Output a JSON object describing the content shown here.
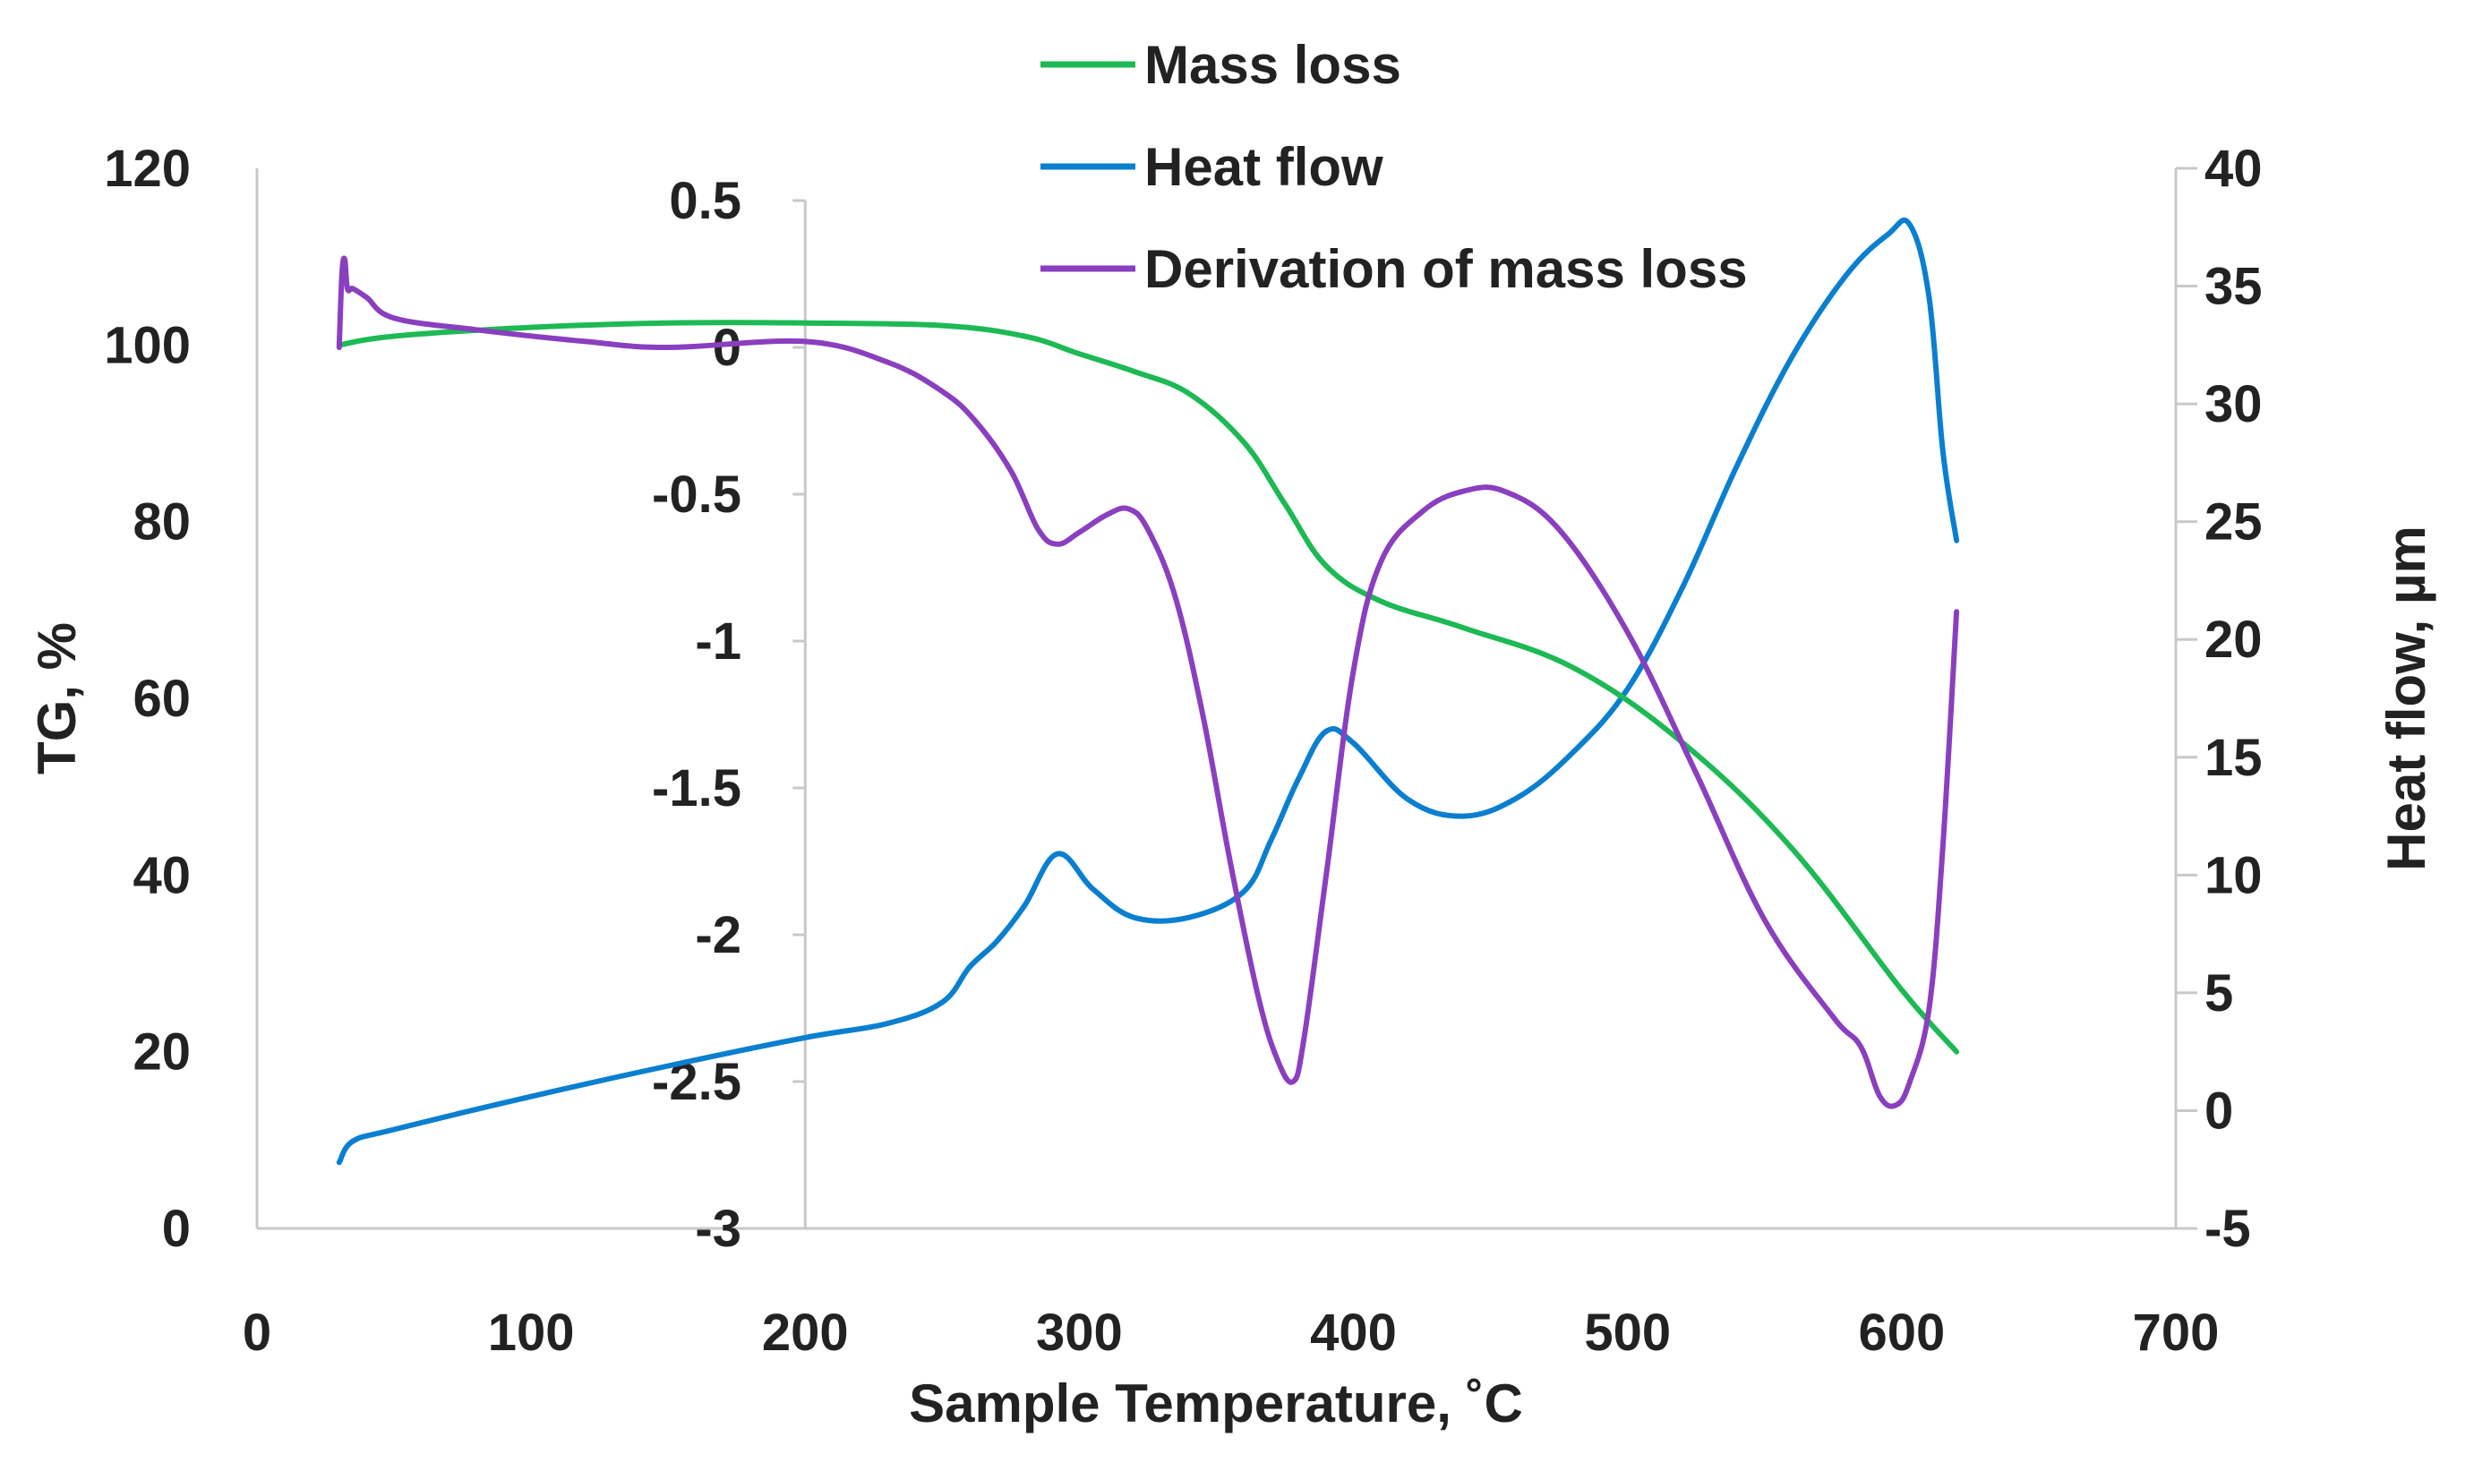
{
  "chart_data": {
    "type": "line",
    "title": "",
    "xlabel": "Sample Temperature, ˚C",
    "ylabel_left": "TG, %",
    "ylabel_right": "Heat flow, µm",
    "grid": false,
    "legend_position": "top-center",
    "x_axis": {
      "range": [
        0,
        700
      ],
      "ticks": [
        "0",
        "100",
        "200",
        "300",
        "400",
        "500",
        "600",
        "700"
      ]
    },
    "y_left": {
      "range": [
        0,
        120
      ],
      "ticks": [
        "0",
        "20",
        "40",
        "60",
        "80",
        "100",
        "120"
      ]
    },
    "y_mid": {
      "range": [
        -3,
        0.5
      ],
      "position_x_value": 200,
      "ticks": [
        "-3",
        "-2.5",
        "-2",
        "-1.5",
        "-1",
        "-0.5",
        "0",
        "0.5"
      ]
    },
    "y_right": {
      "range": [
        -5,
        40
      ],
      "ticks": [
        "-5",
        "0",
        "5",
        "10",
        "15",
        "20",
        "25",
        "30",
        "35",
        "40"
      ]
    },
    "series": [
      {
        "name": "Mass loss",
        "axis": "y_left",
        "color": "#1db954",
        "x": [
          30,
          50,
          100,
          150,
          200,
          250,
          280,
          300,
          320,
          340,
          360,
          375,
          390,
          410,
          440,
          480,
          520,
          560,
          600,
          620
        ],
        "y": [
          100,
          101,
          102,
          102.5,
          102.5,
          102.2,
          101,
          99,
          97,
          94.5,
          89,
          82,
          75,
          71,
          68,
          63.5,
          55,
          43,
          27,
          20
        ]
      },
      {
        "name": "Heat flow",
        "axis": "y_right",
        "color": "#0a7fd0",
        "x": [
          30,
          35,
          50,
          100,
          150,
          200,
          230,
          250,
          260,
          270,
          280,
          292,
          305,
          320,
          340,
          360,
          370,
          380,
          390,
          400,
          420,
          440,
          460,
          480,
          500,
          520,
          540,
          560,
          580,
          595,
          603,
          610,
          615,
          620
        ],
        "y": [
          -2.2,
          -1.3,
          -0.8,
          0.6,
          1.9,
          3.1,
          3.7,
          4.6,
          6.1,
          7.2,
          8.7,
          10.9,
          9.4,
          8.2,
          8.2,
          9.3,
          11.5,
          14.1,
          16.1,
          15.6,
          13.2,
          12.5,
          13.3,
          15.2,
          17.9,
          22.2,
          27.4,
          32.0,
          35.5,
          37.2,
          37.6,
          34.5,
          28.0,
          24.2
        ]
      },
      {
        "name": "Derivation of mass loss",
        "axis": "y_mid",
        "color": "#8a3fbf",
        "x": [
          30,
          31,
          32,
          33,
          35,
          40,
          50,
          80,
          120,
          150,
          200,
          230,
          250,
          262,
          275,
          285,
          292,
          300,
          310,
          318,
          325,
          335,
          345,
          355,
          365,
          372,
          378,
          382,
          390,
          400,
          410,
          425,
          440,
          455,
          475,
          500,
          525,
          550,
          575,
          585,
          592,
          598,
          603,
          610,
          615,
          620
        ],
        "y": [
          0.0,
          0.25,
          0.3,
          0.2,
          0.2,
          0.17,
          0.1,
          0.06,
          0.02,
          0.0,
          0.02,
          -0.05,
          -0.15,
          -0.25,
          -0.42,
          -0.62,
          -0.67,
          -0.63,
          -0.57,
          -0.55,
          -0.62,
          -0.85,
          -1.25,
          -1.75,
          -2.2,
          -2.42,
          -2.5,
          -2.35,
          -1.8,
          -1.1,
          -0.73,
          -0.56,
          -0.49,
          -0.49,
          -0.62,
          -0.97,
          -1.45,
          -1.95,
          -2.28,
          -2.38,
          -2.55,
          -2.58,
          -2.5,
          -2.25,
          -1.7,
          -0.9
        ]
      }
    ],
    "legend": [
      "Mass loss",
      "Heat flow",
      "Derivation of mass loss"
    ]
  }
}
